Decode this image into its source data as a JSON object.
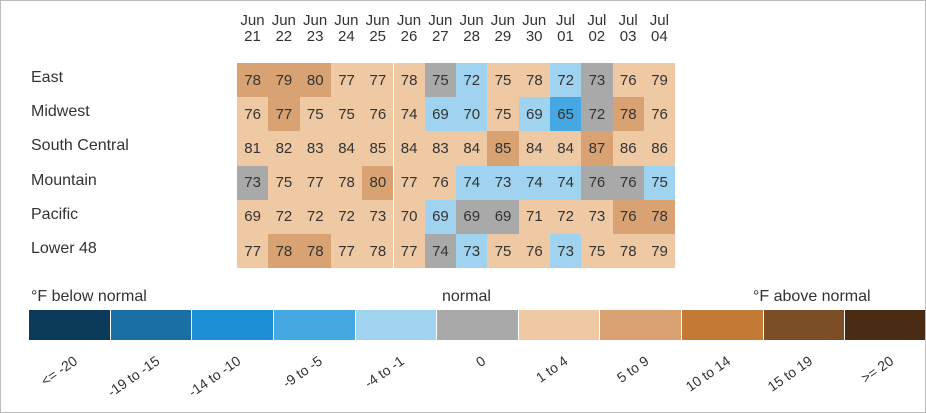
{
  "chart_data": {
    "type": "heatmap",
    "x": [
      "Jun 21",
      "Jun 22",
      "Jun 23",
      "Jun 24",
      "Jun 25",
      "Jun 26",
      "Jun 27",
      "Jun 28",
      "Jun 29",
      "Jun 30",
      "Jul 01",
      "Jul 02",
      "Jul 03",
      "Jul 04"
    ],
    "y": [
      "East",
      "Midwest",
      "South Central",
      "Mountain",
      "Pacific",
      "Lower 48"
    ],
    "values": [
      [
        78,
        79,
        80,
        77,
        77,
        78,
        75,
        72,
        75,
        78,
        72,
        73,
        76,
        79
      ],
      [
        76,
        77,
        75,
        75,
        76,
        74,
        69,
        70,
        75,
        69,
        65,
        72,
        78,
        76
      ],
      [
        81,
        82,
        83,
        84,
        85,
        84,
        83,
        84,
        85,
        84,
        84,
        87,
        86,
        86
      ],
      [
        73,
        75,
        77,
        78,
        80,
        77,
        76,
        74,
        73,
        74,
        74,
        76,
        76,
        75
      ],
      [
        69,
        72,
        72,
        72,
        73,
        70,
        69,
        69,
        69,
        71,
        72,
        73,
        76,
        78
      ],
      [
        77,
        78,
        78,
        77,
        78,
        77,
        74,
        73,
        75,
        76,
        73,
        75,
        78,
        79
      ]
    ],
    "color_classes": [
      [
        7,
        7,
        7,
        6,
        6,
        6,
        5,
        4,
        6,
        6,
        4,
        5,
        6,
        6
      ],
      [
        6,
        7,
        6,
        6,
        6,
        6,
        4,
        4,
        6,
        4,
        3,
        5,
        7,
        6
      ],
      [
        6,
        6,
        6,
        6,
        6,
        6,
        6,
        6,
        7,
        6,
        6,
        7,
        6,
        6
      ],
      [
        5,
        6,
        6,
        6,
        7,
        6,
        6,
        4,
        4,
        4,
        4,
        5,
        5,
        4
      ],
      [
        6,
        6,
        6,
        6,
        6,
        6,
        4,
        5,
        5,
        6,
        6,
        6,
        7,
        7
      ],
      [
        6,
        7,
        7,
        6,
        6,
        6,
        5,
        4,
        6,
        6,
        4,
        6,
        6,
        6
      ]
    ],
    "legend_titles": [
      "°F below normal",
      "normal",
      "°F above normal"
    ],
    "legend": [
      {
        "label": "<= -20",
        "color": "#0b3a5a"
      },
      {
        "label": "-19 to -15",
        "color": "#1a6fa5"
      },
      {
        "label": "-14 to -10",
        "color": "#1c8fd6"
      },
      {
        "label": "-9 to -5",
        "color": "#45a8e3"
      },
      {
        "label": "-4 to -1",
        "color": "#9fd3ef"
      },
      {
        "label": "0",
        "color": "#a9a9a9"
      },
      {
        "label": "1 to 4",
        "color": "#eec9a3"
      },
      {
        "label": "5 to 9",
        "color": "#d9a272"
      },
      {
        "label": "10 to 14",
        "color": "#c27a35"
      },
      {
        "label": "15 to 19",
        "color": "#7c4e26"
      },
      {
        "label": ">= 20",
        "color": "#4a2c14"
      }
    ]
  }
}
